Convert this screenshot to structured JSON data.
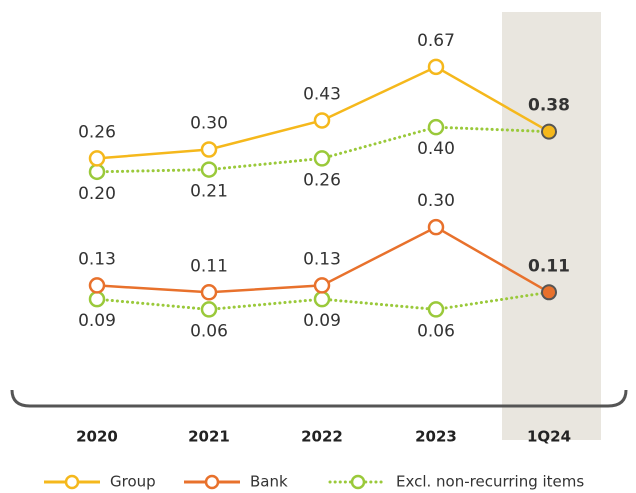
{
  "chart_data": [
    {
      "type": "line",
      "categories": [
        "2020",
        "2021",
        "2022",
        "2023",
        "1Q24"
      ],
      "ylim": [
        0.15,
        0.75
      ],
      "series": [
        {
          "name": "Group",
          "color": "#f5b81c",
          "values": [
            0.26,
            0.3,
            0.43,
            0.67,
            0.38
          ],
          "value_labels": [
            "0.26",
            "0.30",
            "0.43",
            "0.67",
            "0.38"
          ]
        },
        {
          "name": "Excl. non-recurring items",
          "color": "#9ac93a",
          "values": [
            0.2,
            0.21,
            0.26,
            0.4,
            null
          ],
          "value_labels": [
            "0.20",
            "0.21",
            "0.26",
            "0.40",
            null
          ]
        }
      ]
    },
    {
      "type": "line",
      "categories": [
        "2020",
        "2021",
        "2022",
        "2023",
        "1Q24"
      ],
      "ylim": [
        0,
        0.35
      ],
      "series": [
        {
          "name": "Bank",
          "color": "#e8712c",
          "values": [
            0.13,
            0.11,
            0.13,
            0.3,
            0.11
          ],
          "value_labels": [
            "0.13",
            "0.11",
            "0.13",
            "0.30",
            "0.11"
          ]
        },
        {
          "name": "Excl. non-recurring items",
          "color": "#9ac93a",
          "values": [
            0.09,
            0.06,
            0.09,
            0.06,
            null
          ],
          "value_labels": [
            "0.09",
            "0.06",
            "0.09",
            "0.06",
            null
          ]
        }
      ]
    }
  ]
}
